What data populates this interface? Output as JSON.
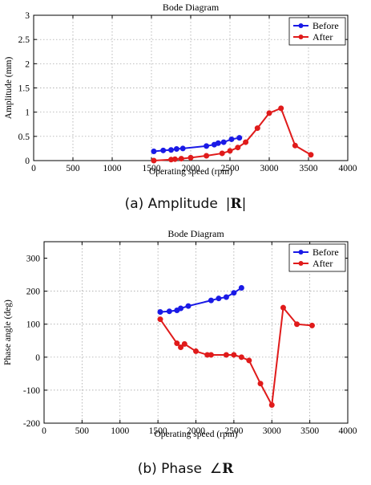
{
  "chart_data": [
    {
      "type": "line",
      "title": "Bode Diagram",
      "xlabel": "Operating speed (rpm)",
      "ylabel": "Amplitude (mm)",
      "xlim": [
        0,
        4000
      ],
      "ylim": [
        0,
        3
      ],
      "xticks": [
        "0",
        "500",
        "1000",
        "1500",
        "2000",
        "2500",
        "3000",
        "3500",
        "4000"
      ],
      "yticks": [
        "0",
        "0.5",
        "1",
        "1.5",
        "2",
        "2.5",
        "3"
      ],
      "grid": true,
      "legend": "top-right",
      "series": [
        {
          "name": "Before",
          "color": "#1a1ae6",
          "x": [
            1530,
            1650,
            1750,
            1820,
            1900,
            2200,
            2300,
            2350,
            2420,
            2520,
            2620
          ],
          "y": [
            0.19,
            0.21,
            0.22,
            0.24,
            0.25,
            0.3,
            0.33,
            0.36,
            0.38,
            0.44,
            0.47
          ]
        },
        {
          "name": "After",
          "color": "#e01b1b",
          "x": [
            1530,
            1750,
            1800,
            1880,
            2000,
            2200,
            2400,
            2500,
            2600,
            2700,
            2850,
            3000,
            3150,
            3330,
            3530
          ],
          "y": [
            0.0,
            0.02,
            0.03,
            0.04,
            0.06,
            0.1,
            0.15,
            0.2,
            0.27,
            0.38,
            0.67,
            0.98,
            1.08,
            0.31,
            0.12
          ]
        }
      ]
    },
    {
      "type": "line",
      "title": "Bode Diagram",
      "xlabel": "Operating speed (rpm)",
      "ylabel": "Phase angle (deg)",
      "xlim": [
        0,
        4000
      ],
      "ylim": [
        -200,
        350
      ],
      "xticks": [
        "0",
        "500",
        "1000",
        "1500",
        "2000",
        "2500",
        "3000",
        "3500",
        "4000"
      ],
      "yticks": [
        "-200",
        "-100",
        "0",
        "100",
        "200",
        "300"
      ],
      "grid": true,
      "legend": "top-right",
      "series": [
        {
          "name": "Before",
          "color": "#1a1ae6",
          "x": [
            1530,
            1650,
            1750,
            1800,
            1900,
            2200,
            2300,
            2400,
            2500,
            2600
          ],
          "y": [
            137,
            139,
            142,
            148,
            155,
            172,
            178,
            182,
            195,
            210
          ]
        },
        {
          "name": "After",
          "color": "#e01b1b",
          "x": [
            1530,
            1750,
            1800,
            1850,
            2000,
            2150,
            2200,
            2400,
            2500,
            2600,
            2700,
            2850,
            3000,
            3150,
            3330,
            3530
          ],
          "y": [
            115,
            42,
            30,
            40,
            18,
            7,
            7,
            7,
            7,
            0,
            -10,
            -80,
            -145,
            150,
            100,
            96
          ]
        }
      ]
    }
  ],
  "captions": {
    "a": {
      "prefix": "(a) Amplitude",
      "symbol": "|",
      "bold": "R",
      "suffix": "|"
    },
    "b": {
      "prefix": "(b) Phase",
      "symbol": "∠",
      "bold": "R",
      "suffix": ""
    }
  }
}
